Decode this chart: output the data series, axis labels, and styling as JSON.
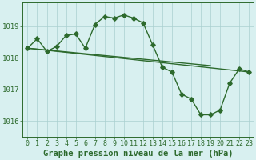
{
  "title": "Graphe pression niveau de la mer (hPa)",
  "x_ticks": [
    0,
    1,
    2,
    3,
    4,
    5,
    6,
    7,
    8,
    9,
    10,
    11,
    12,
    13,
    14,
    15,
    16,
    17,
    18,
    19,
    20,
    21,
    22,
    23
  ],
  "ylim": [
    1015.5,
    1019.75
  ],
  "yticks": [
    1016,
    1017,
    1018,
    1019
  ],
  "main_x": [
    0,
    1,
    2,
    3,
    4,
    5,
    6,
    7,
    8,
    9,
    10,
    11,
    12,
    13,
    14,
    15,
    16,
    17,
    18,
    19,
    20,
    21,
    22,
    23
  ],
  "main_y": [
    1018.3,
    1018.6,
    1018.2,
    1018.35,
    1018.7,
    1018.75,
    1018.3,
    1019.05,
    1019.3,
    1019.25,
    1019.35,
    1019.25,
    1019.1,
    1018.4,
    1017.7,
    1017.55,
    1016.85,
    1016.7,
    1016.2,
    1016.2,
    1016.35,
    1017.2,
    1017.65,
    1017.55
  ],
  "line2_x": [
    0,
    19
  ],
  "line2_y": [
    1018.3,
    1017.75
  ],
  "line3_x": [
    0,
    23
  ],
  "line3_y": [
    1018.3,
    1017.55
  ],
  "line_color": "#2d6a2d",
  "bg_color": "#d8f0f0",
  "grid_color": "#aacfcf",
  "text_color": "#2d6a2d",
  "marker": "D",
  "markersize": 2.8,
  "linewidth": 1.0,
  "title_fontsize": 7.5,
  "tick_fontsize": 6.0
}
